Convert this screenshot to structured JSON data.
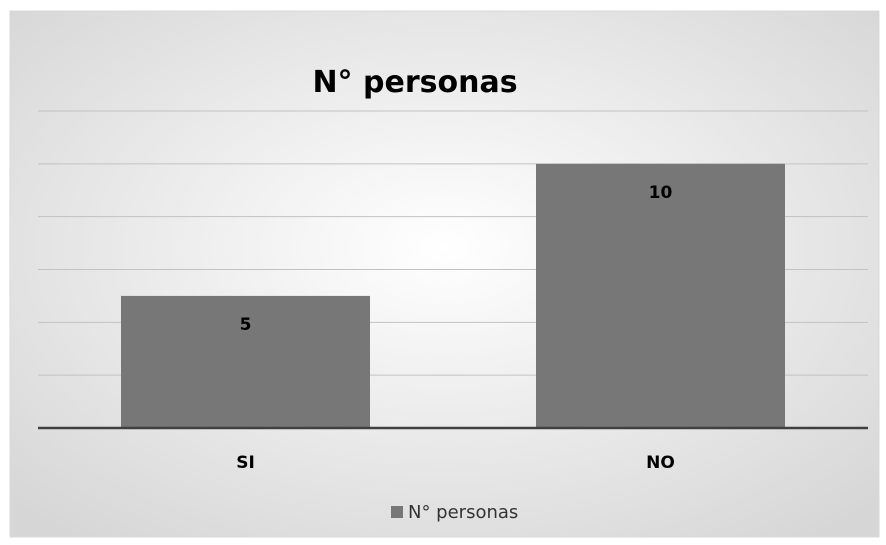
{
  "chart_data": {
    "type": "bar",
    "title": "N° personas",
    "categories": [
      "SI",
      "NO"
    ],
    "series": [
      {
        "name": "N° personas",
        "values": [
          5,
          10
        ],
        "color": "#777777"
      }
    ],
    "data_labels": [
      "5",
      "10"
    ],
    "ylim": [
      0,
      12
    ],
    "ytick_step": 2,
    "y_axis_visible": false,
    "grid": true,
    "legend": "bottom",
    "colors": {
      "background_center": "#ffffff",
      "background_edge": "#d6d6d6",
      "gridline": "#c2c2c2",
      "axis": "#404040",
      "bar": "#777777"
    }
  }
}
